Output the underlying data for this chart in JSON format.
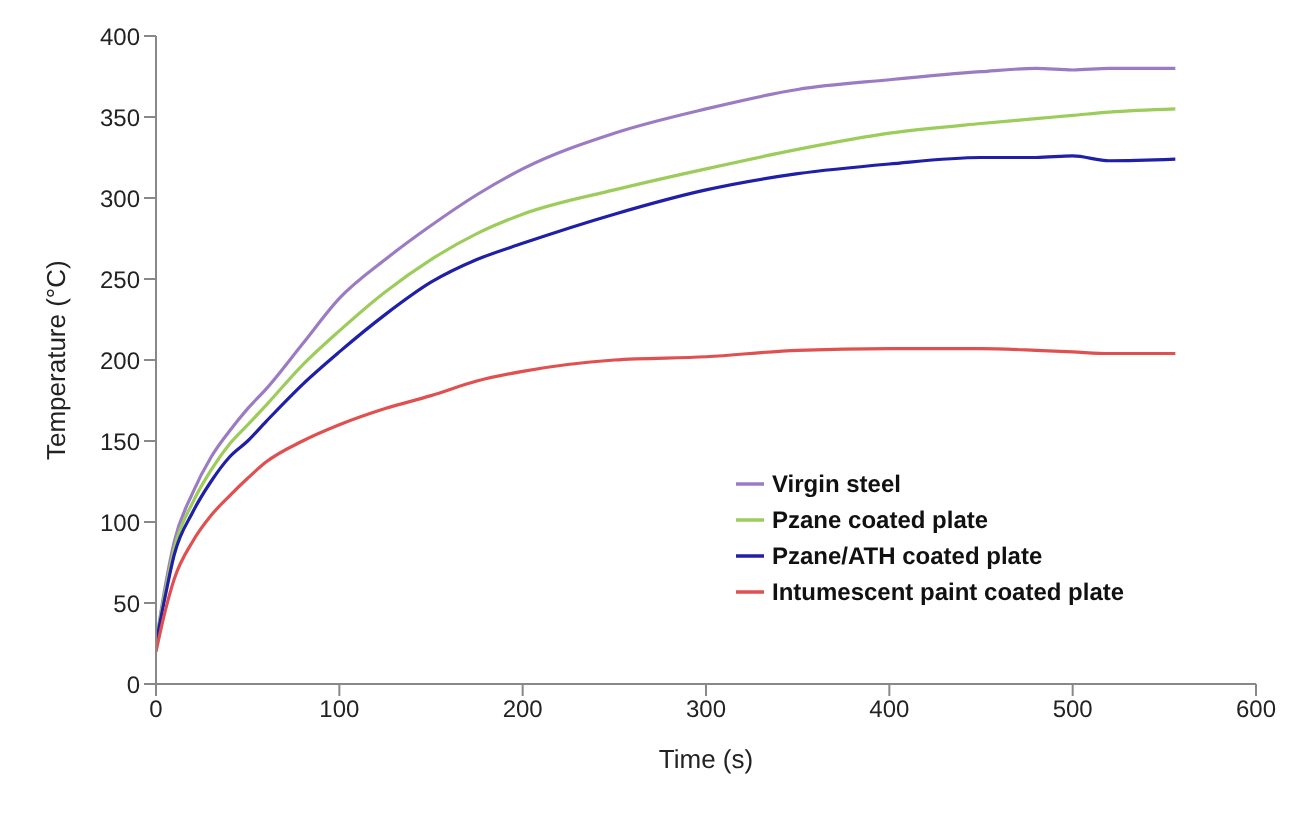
{
  "chart_data": {
    "type": "line",
    "xlabel": "Time (s)",
    "ylabel": "Temperature (°C)",
    "x": [
      0,
      5,
      10,
      20,
      30,
      40,
      50,
      60,
      80,
      100,
      125,
      150,
      175,
      200,
      250,
      300,
      350,
      400,
      450,
      480,
      500,
      520,
      556
    ],
    "xlim": [
      0,
      600
    ],
    "xticks": [
      0,
      100,
      200,
      300,
      400,
      500,
      600
    ],
    "ylim": [
      0,
      400
    ],
    "yticks": [
      0,
      50,
      100,
      150,
      200,
      250,
      300,
      350,
      400
    ],
    "grid": false,
    "legend": "bottom right",
    "marker": "none",
    "line_style": "solid",
    "series": [
      {
        "name": "Virgin steel",
        "color": "#9b7cc4",
        "values": [
          25,
          60,
          88,
          118,
          140,
          156,
          170,
          182,
          210,
          238,
          262,
          283,
          302,
          318,
          340,
          355,
          367,
          373,
          378,
          380,
          379,
          380,
          380
        ]
      },
      {
        "name": "Pzane coated plate",
        "color": "#9ccc5a",
        "values": [
          25,
          57,
          84,
          112,
          132,
          148,
          160,
          172,
          197,
          218,
          242,
          262,
          278,
          290,
          305,
          318,
          330,
          340,
          346,
          349,
          351,
          353,
          355
        ]
      },
      {
        "name": "Pzane/ATH coated plate",
        "color": "#1f1fa8",
        "values": [
          25,
          54,
          80,
          106,
          125,
          140,
          150,
          162,
          185,
          205,
          228,
          248,
          262,
          272,
          290,
          305,
          315,
          321,
          325,
          325,
          326,
          323,
          324
        ]
      },
      {
        "name": "Intumescent paint coated plate",
        "color": "#e05050",
        "values": [
          20,
          45,
          65,
          88,
          104,
          116,
          127,
          137,
          150,
          160,
          170,
          178,
          187,
          193,
          200,
          202,
          206,
          207,
          207,
          206,
          205,
          204,
          204
        ]
      }
    ]
  }
}
